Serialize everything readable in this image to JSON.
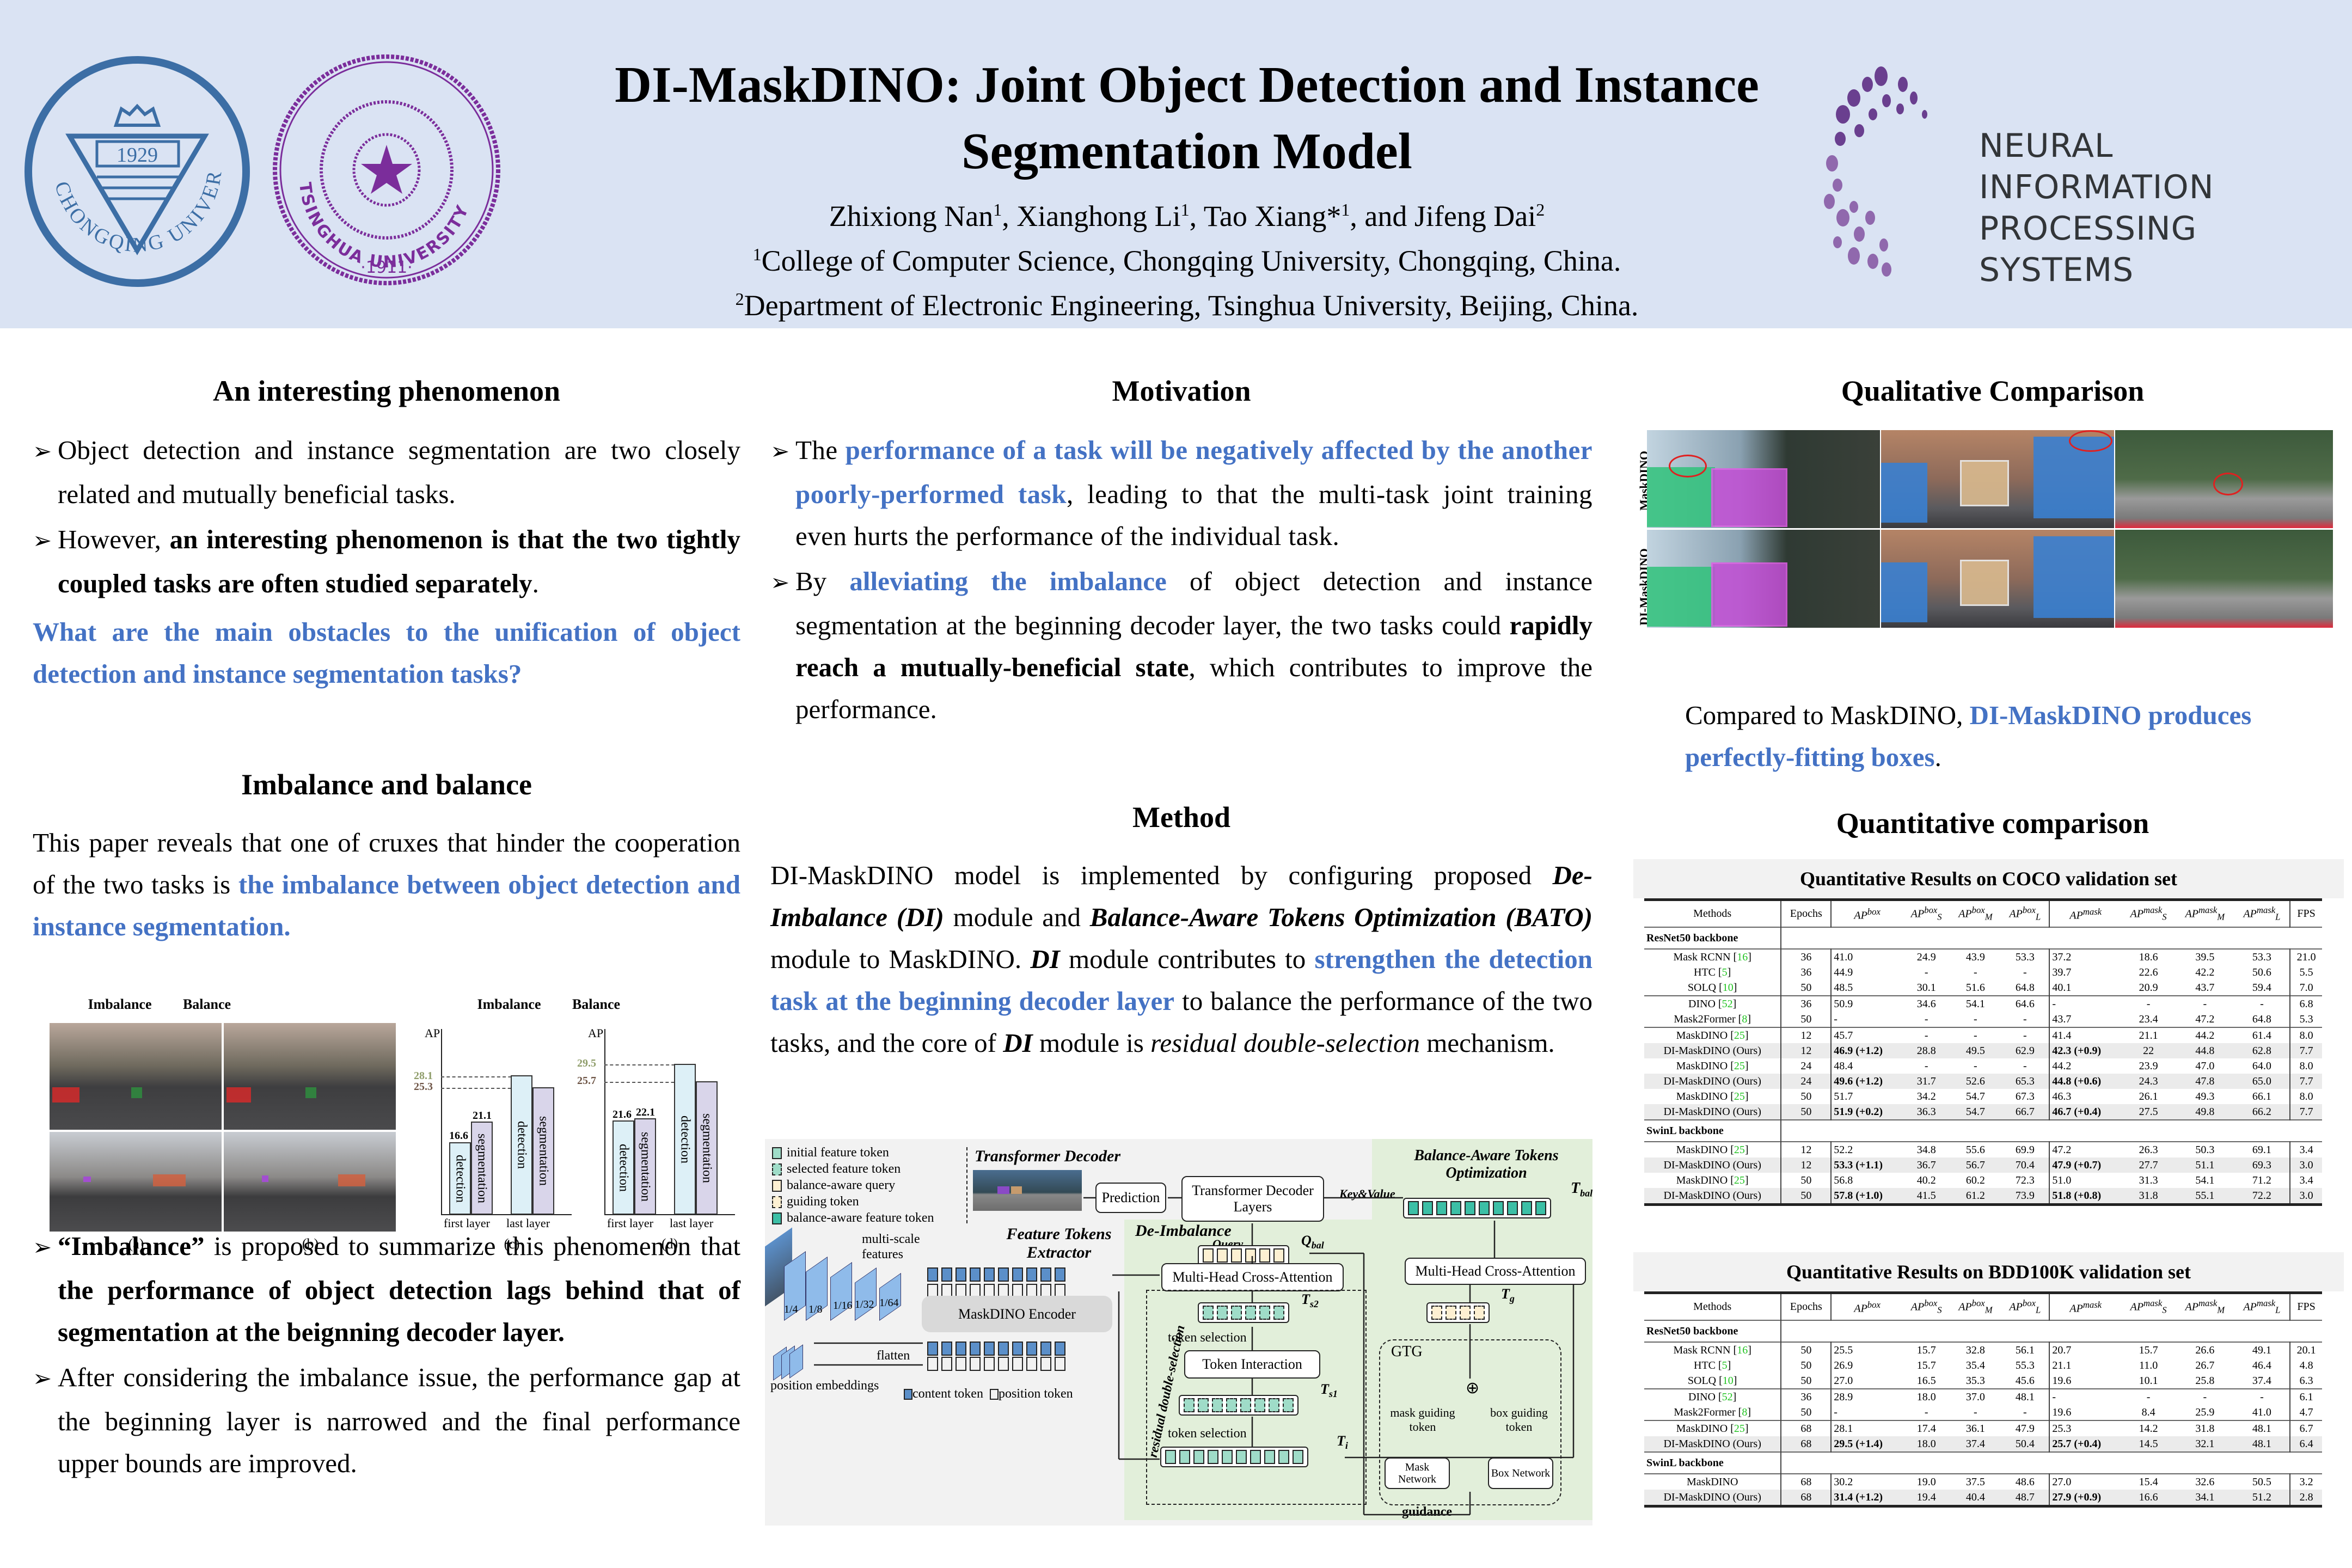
{
  "header": {
    "title_line1": "DI-MaskDINO: Joint Object Detection and Instance",
    "title_line2": "Segmentation Model",
    "authors": [
      {
        "name": "Zhixiong Nan",
        "sup": "1"
      },
      {
        "name": "Xianghong Li",
        "sup": "1"
      },
      {
        "name": "Tao Xiang*",
        "sup": "1"
      },
      {
        "name": "Jifeng Dai",
        "sup": "2"
      }
    ],
    "authors_sep1": ", ",
    "authors_sep2": ", ",
    "authors_sep3": ", and ",
    "affiliation1_sup": "1",
    "affiliation1": "College of Computer Science, Chongqing University, Chongqing, China.",
    "affiliation2_sup": "2",
    "affiliation2": "Department of Electronic Engineering, Tsinghua University, Beijing, China.",
    "logo_left": {
      "name": "CHONGQING UNIVERSITY",
      "year": "1929",
      "color": "#3c6ea5"
    },
    "logo_middle": {
      "name": "TSINGHUA UNIVERSITY",
      "year": "·1911·",
      "color": "#7b2d9b"
    },
    "logo_right": {
      "line1": "NEURAL INFORMATION",
      "line2": "PROCESSING SYSTEMS",
      "color": "#6a3f8f"
    },
    "bg_color": "#dae3f3"
  },
  "phenomenon": {
    "title": "An interesting phenomenon",
    "bullet1": "Object detection and instance segmentation are two closely related and mutually beneficial tasks.",
    "bullet2_a": "However, ",
    "bullet2_b": "an interesting phenomenon is that the two tightly coupled tasks are often studied separately",
    "bullet2_c": ".",
    "question": "What are the main obstacles to the unification of object detection and instance segmentation tasks?"
  },
  "imbalance": {
    "title": "Imbalance and balance",
    "para_a": "This paper reveals that one of cruxes that hinder the cooperation of the two tasks is ",
    "para_b": "the imbalance between object detection and instance segmentation.",
    "figure": {
      "labels": [
        "Imbalance",
        "Balance",
        "Imbalance",
        "Balance"
      ],
      "captions": [
        "(a)",
        "(b)",
        "(c)",
        "(d)"
      ],
      "y_axis": "AP",
      "x_labels": [
        "first layer",
        "last layer"
      ],
      "bar_labels": {
        "det": "detection",
        "seg": "segmentation"
      }
    },
    "bullet1_a": "“Imbalance”",
    "bullet1_b": " is proposed to summarize this phenomenon that ",
    "bullet1_c": "the performance of object detection lags behind that of segmentation at the beignning decoder layer.",
    "bullet2": "After considering the imbalance issue, the performance gap at the beginning layer is narrowed and the final performance upper bounds are improved."
  },
  "chart_data": [
    {
      "type": "bar",
      "title": "Imbalance",
      "categories": [
        "first layer",
        "last layer"
      ],
      "series": [
        {
          "name": "detection",
          "values": [
            16.6,
            28.1
          ]
        },
        {
          "name": "segmentation",
          "values": [
            21.1,
            25.3
          ]
        }
      ],
      "ylabel": "AP",
      "annotations": [
        "28.1",
        "25.3",
        "16.6",
        "21.1"
      ]
    },
    {
      "type": "bar",
      "title": "Balance",
      "categories": [
        "first layer",
        "last layer"
      ],
      "series": [
        {
          "name": "detection",
          "values": [
            21.6,
            29.5
          ]
        },
        {
          "name": "segmentation",
          "values": [
            22.1,
            25.7
          ]
        }
      ],
      "ylabel": "AP",
      "annotations": [
        "29.5",
        "25.7",
        "21.6",
        "22.1"
      ]
    }
  ],
  "motivation": {
    "title": "Motivation",
    "b1_a": "The ",
    "b1_b": "performance of a task will be negatively affected by the another poorly-performed task",
    "b1_c": ", leading to that the multi-task joint training even hurts the performance of the individual task.",
    "b2_a": "By ",
    "b2_b": "alleviating the imbalance",
    "b2_c": " of object detection and instance segmentation at the beginning decoder layer, the two tasks could ",
    "b2_d": "rapidly reach a mutually-beneficial state",
    "b2_e": ", which contributes to improve the performance."
  },
  "method": {
    "title": "Method",
    "p_a": "DI-MaskDINO model is implemented by configuring proposed ",
    "p_b": "De-Imbalance (DI)",
    "p_c": " module and ",
    "p_d": "Balance-Aware Tokens Optimization (BATO)",
    "p_e": " module to MaskDINO. ",
    "p_f": "DI",
    "p_g": " module contributes to ",
    "p_h": "strengthen the detection task at the beginning decoder layer",
    "p_i": " to balance the performance of the two tasks, and the core of ",
    "p_j": "DI",
    "p_k": " module is ",
    "p_l": "residual double-selection",
    "p_m": " mechanism.",
    "diagram": {
      "legend": [
        "initial feature token",
        "selected feature token",
        "balance-aware query",
        "guiding token",
        "balance-aware feature token"
      ],
      "transformer_decoder": "Transformer Decoder",
      "prediction": "Prediction",
      "decoder_layers": "Transformer Decoder Layers",
      "key_value": "Key&Value",
      "query": "Query",
      "bato_title": "Balance-Aware Tokens Optimization",
      "t_bal": "T",
      "t_bal_sub": "bal",
      "mhca": "Multi-Head Cross-Attention",
      "t_g": "T",
      "t_g_sub": "g",
      "gtg": "GTG",
      "mask_guiding": "mask guiding token",
      "box_guiding": "box guiding token",
      "mask_network": "Mask Network",
      "box_network": "Box Network",
      "guidance": "guidance",
      "de_imbalance": "De-Imbalance",
      "q_bal": "Q",
      "q_bal_sub": "bal",
      "token_interaction": "Token Interaction",
      "token_selection": "token selection",
      "t_s2": "T",
      "t_s2_sub": "s2",
      "t_s1": "T",
      "t_s1_sub": "s1",
      "t_i": "T",
      "t_i_sub": "i",
      "residual": "residual double-selection",
      "fte_title": "Feature Tokens Extractor",
      "multiscale": "multi-scale features",
      "scales": [
        "1/4",
        "1/8",
        "1/16",
        "1/32",
        "1/64"
      ],
      "encoder": "MaskDINO Encoder",
      "flatten": "flatten",
      "pos_emb": "position embeddings",
      "content_token": "content token",
      "position_token": "position token"
    }
  },
  "qualitative": {
    "title": "Qualitative Comparison",
    "row_labels": [
      "MaskDINO",
      "DI-MaskDINO"
    ],
    "caption_a": "Compared to MaskDINO, ",
    "caption_b": "DI-MaskDINO produces perfectly-fitting boxes",
    "caption_c": "."
  },
  "quantitative": {
    "title": "Quantitative comparison",
    "columns": [
      "Methods",
      "Epochs",
      "AP^box",
      "AP_S^box",
      "AP_M^box",
      "AP_L^box",
      "AP^mask",
      "AP_S^mask",
      "AP_M^mask",
      "AP_L^mask",
      "FPS"
    ],
    "coco": {
      "title": "Quantitative Results on COCO validation set",
      "sections": [
        {
          "name": "ResNet50 backbone",
          "groups": [
            [
              {
                "method": "Mask RCNN",
                "ref": "16",
                "vals": [
                  "36",
                  "41.0",
                  "24.9",
                  "43.9",
                  "53.3",
                  "37.2",
                  "18.6",
                  "39.5",
                  "53.3",
                  "21.0"
                ]
              },
              {
                "method": "HTC",
                "ref": "5",
                "vals": [
                  "36",
                  "44.9",
                  "-",
                  "-",
                  "-",
                  "39.7",
                  "22.6",
                  "42.2",
                  "50.6",
                  "5.5"
                ]
              },
              {
                "method": "SOLQ",
                "ref": "10",
                "vals": [
                  "50",
                  "48.5",
                  "30.1",
                  "51.6",
                  "64.8",
                  "40.1",
                  "20.9",
                  "43.7",
                  "59.4",
                  "7.0"
                ]
              }
            ],
            [
              {
                "method": "DINO",
                "ref": "52",
                "vals": [
                  "36",
                  "50.9",
                  "34.6",
                  "54.1",
                  "64.6",
                  "-",
                  "-",
                  "-",
                  "-",
                  "6.8"
                ]
              },
              {
                "method": "Mask2Former",
                "ref": "8",
                "vals": [
                  "50",
                  "-",
                  "-",
                  "-",
                  "-",
                  "43.7",
                  "23.4",
                  "47.2",
                  "64.8",
                  "5.3"
                ]
              }
            ],
            [
              {
                "method": "MaskDINO",
                "ref": "25",
                "vals": [
                  "12",
                  "45.7",
                  "-",
                  "-",
                  "-",
                  "41.4",
                  "21.1",
                  "44.2",
                  "61.4",
                  "8.0"
                ]
              },
              {
                "method": "DI-MaskDINO (Ours)",
                "ours": true,
                "vals": [
                  "12",
                  "46.9 (+1.2)",
                  "28.8",
                  "49.5",
                  "62.9",
                  "42.3 (+0.9)",
                  "22",
                  "44.8",
                  "62.8",
                  "7.7"
                ]
              },
              {
                "method": "MaskDINO",
                "ref": "25",
                "vals": [
                  "24",
                  "48.4",
                  "-",
                  "-",
                  "-",
                  "44.2",
                  "23.9",
                  "47.0",
                  "64.0",
                  "8.0"
                ]
              },
              {
                "method": "DI-MaskDINO (Ours)",
                "ours": true,
                "vals": [
                  "24",
                  "49.6 (+1.2)",
                  "31.7",
                  "52.6",
                  "65.3",
                  "44.8 (+0.6)",
                  "24.3",
                  "47.8",
                  "65.0",
                  "7.7"
                ]
              },
              {
                "method": "MaskDINO",
                "ref": "25",
                "vals": [
                  "50",
                  "51.7",
                  "34.2",
                  "54.7",
                  "67.3",
                  "46.3",
                  "26.1",
                  "49.3",
                  "66.1",
                  "8.0"
                ]
              },
              {
                "method": "DI-MaskDINO (Ours)",
                "ours": true,
                "vals": [
                  "50",
                  "51.9 (+0.2)",
                  "36.3",
                  "54.7",
                  "66.7",
                  "46.7 (+0.4)",
                  "27.5",
                  "49.8",
                  "66.2",
                  "7.7"
                ]
              }
            ]
          ]
        },
        {
          "name": "SwinL backbone",
          "groups": [
            [
              {
                "method": "MaskDINO",
                "ref": "25",
                "vals": [
                  "12",
                  "52.2",
                  "34.8",
                  "55.6",
                  "69.9",
                  "47.2",
                  "26.3",
                  "50.3",
                  "69.1",
                  "3.4"
                ]
              },
              {
                "method": "DI-MaskDINO (Ours)",
                "ours": true,
                "vals": [
                  "12",
                  "53.3 (+1.1)",
                  "36.7",
                  "56.7",
                  "70.4",
                  "47.9 (+0.7)",
                  "27.7",
                  "51.1",
                  "69.3",
                  "3.0"
                ]
              },
              {
                "method": "MaskDINO",
                "ref": "25",
                "vals": [
                  "50",
                  "56.8",
                  "40.2",
                  "60.2",
                  "72.3",
                  "51.0",
                  "31.3",
                  "54.1",
                  "71.2",
                  "3.4"
                ]
              },
              {
                "method": "DI-MaskDINO (Ours)",
                "ours": true,
                "vals": [
                  "50",
                  "57.8 (+1.0)",
                  "41.5",
                  "61.2",
                  "73.9",
                  "51.8 (+0.8)",
                  "31.8",
                  "55.1",
                  "72.2",
                  "3.0"
                ]
              }
            ]
          ]
        }
      ]
    },
    "bdd": {
      "title": "Quantitative Results on BDD100K validation set",
      "sections": [
        {
          "name": "ResNet50 backbone",
          "groups": [
            [
              {
                "method": "Mask RCNN",
                "ref": "16",
                "vals": [
                  "50",
                  "25.5",
                  "15.7",
                  "32.8",
                  "56.1",
                  "20.7",
                  "15.7",
                  "26.6",
                  "49.1",
                  "20.1"
                ]
              },
              {
                "method": "HTC",
                "ref": "5",
                "vals": [
                  "50",
                  "26.9",
                  "15.7",
                  "35.4",
                  "55.3",
                  "21.1",
                  "11.0",
                  "26.7",
                  "46.4",
                  "4.8"
                ]
              },
              {
                "method": "SOLQ",
                "ref": "10",
                "vals": [
                  "50",
                  "27.0",
                  "16.5",
                  "35.3",
                  "45.6",
                  "19.6",
                  "10.1",
                  "25.8",
                  "37.4",
                  "6.3"
                ]
              }
            ],
            [
              {
                "method": "DINO",
                "ref": "52",
                "vals": [
                  "36",
                  "28.9",
                  "18.0",
                  "37.0",
                  "48.1",
                  "-",
                  "-",
                  "-",
                  "-",
                  "6.1"
                ]
              },
              {
                "method": "Mask2Former",
                "ref": "8",
                "vals": [
                  "50",
                  "-",
                  "-",
                  "-",
                  "-",
                  "19.6",
                  "8.4",
                  "25.9",
                  "41.0",
                  "4.7"
                ]
              }
            ],
            [
              {
                "method": "MaskDINO",
                "ref": "25",
                "vals": [
                  "68",
                  "28.1",
                  "17.4",
                  "36.1",
                  "47.9",
                  "25.3",
                  "14.2",
                  "31.8",
                  "48.1",
                  "6.7"
                ]
              },
              {
                "method": "DI-MaskDINO (Ours)",
                "ours": true,
                "vals": [
                  "68",
                  "29.5 (+1.4)",
                  "18.0",
                  "37.4",
                  "50.4",
                  "25.7 (+0.4)",
                  "14.5",
                  "32.1",
                  "48.1",
                  "6.4"
                ]
              }
            ]
          ]
        },
        {
          "name": "SwinL backbone",
          "groups": [
            [
              {
                "method": "MaskDINO",
                "vals": [
                  "68",
                  "30.2",
                  "19.0",
                  "37.5",
                  "48.6",
                  "27.0",
                  "15.4",
                  "32.6",
                  "50.5",
                  "3.2"
                ]
              },
              {
                "method": "DI-MaskDINO (Ours)",
                "ours": true,
                "vals": [
                  "68",
                  "31.4 (+1.2)",
                  "19.4",
                  "40.4",
                  "48.7",
                  "27.9 (+0.9)",
                  "16.6",
                  "34.1",
                  "51.2",
                  "2.8"
                ]
              }
            ]
          ]
        }
      ]
    }
  },
  "colors": {
    "accent_blue": "#4472c4",
    "header_bg": "#dae3f3",
    "ref_green": "#22c322",
    "diagram_green": "#e2efda",
    "diagram_gray": "#f2f2f2"
  }
}
